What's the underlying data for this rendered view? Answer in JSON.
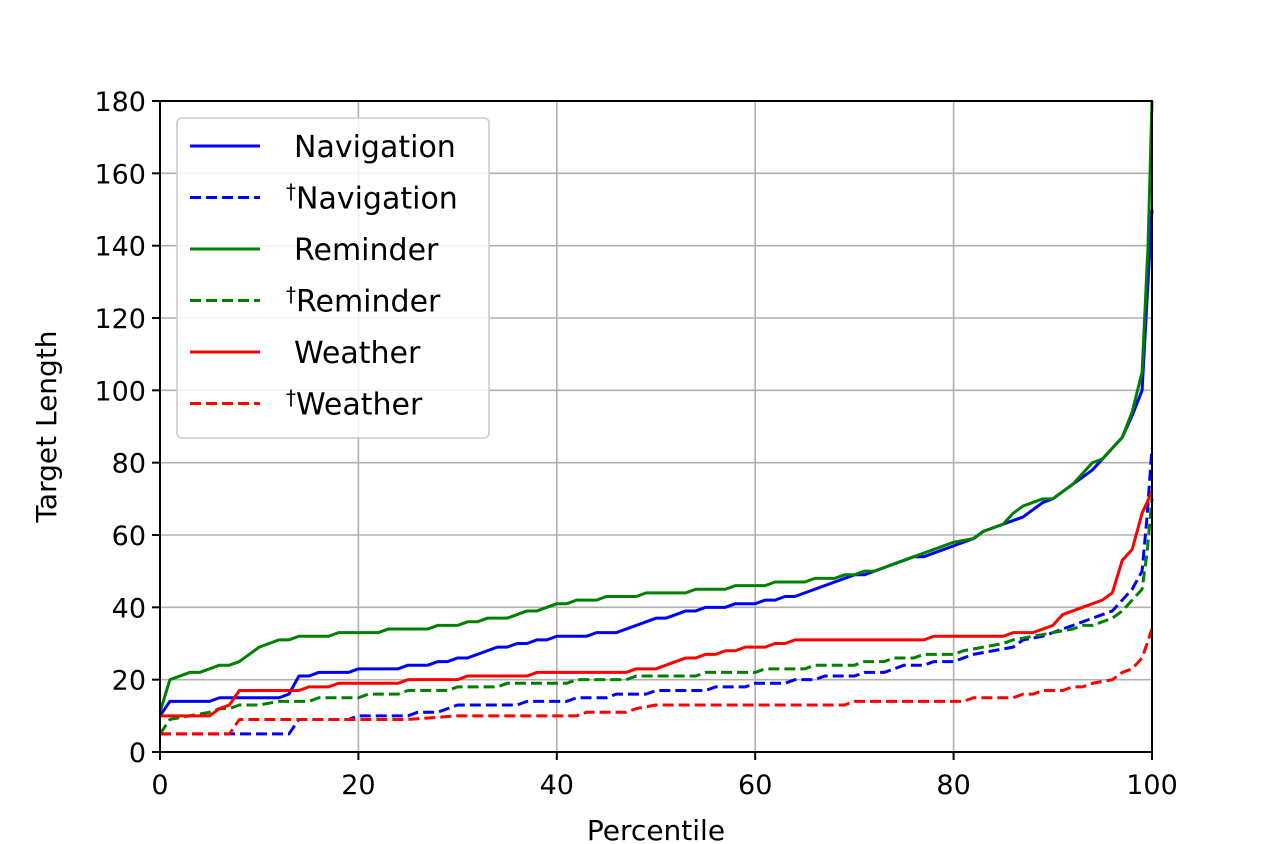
{
  "chart_data": {
    "type": "line",
    "title": "",
    "xlabel": "Percentile",
    "ylabel": "Target Length",
    "xlim": [
      0,
      100
    ],
    "ylim": [
      0,
      180
    ],
    "x_ticks": [
      0,
      20,
      40,
      60,
      80,
      100
    ],
    "y_ticks": [
      0,
      20,
      40,
      60,
      80,
      100,
      120,
      140,
      160,
      180
    ],
    "grid": true,
    "legend_position": "top-left",
    "series": [
      {
        "name": "Navigation",
        "dagger": false,
        "color": "#0000ff",
        "dash": "solid",
        "points": [
          [
            0,
            10
          ],
          [
            1,
            14
          ],
          [
            5,
            14
          ],
          [
            6,
            15
          ],
          [
            12,
            15
          ],
          [
            13,
            16
          ],
          [
            14,
            21
          ],
          [
            15,
            21
          ],
          [
            16,
            22
          ],
          [
            19,
            22
          ],
          [
            20,
            23
          ],
          [
            24,
            23
          ],
          [
            25,
            24
          ],
          [
            27,
            24
          ],
          [
            28,
            25
          ],
          [
            29,
            25
          ],
          [
            30,
            26
          ],
          [
            31,
            26
          ],
          [
            33,
            28
          ],
          [
            34,
            29
          ],
          [
            35,
            29
          ],
          [
            36,
            30
          ],
          [
            37,
            30
          ],
          [
            38,
            31
          ],
          [
            39,
            31
          ],
          [
            40,
            32
          ],
          [
            43,
            32
          ],
          [
            44,
            33
          ],
          [
            46,
            33
          ],
          [
            48,
            35
          ],
          [
            50,
            37
          ],
          [
            51,
            37
          ],
          [
            53,
            39
          ],
          [
            54,
            39
          ],
          [
            55,
            40
          ],
          [
            57,
            40
          ],
          [
            58,
            41
          ],
          [
            60,
            41
          ],
          [
            61,
            42
          ],
          [
            62,
            42
          ],
          [
            63,
            43
          ],
          [
            64,
            43
          ],
          [
            70,
            49
          ],
          [
            71,
            49
          ],
          [
            76,
            54
          ],
          [
            77,
            54
          ],
          [
            81,
            58
          ],
          [
            82,
            59
          ],
          [
            83,
            61
          ],
          [
            87,
            65
          ],
          [
            89,
            69
          ],
          [
            90,
            70
          ],
          [
            92,
            74
          ],
          [
            94,
            78
          ],
          [
            96,
            84
          ],
          [
            97,
            87
          ],
          [
            98,
            93
          ],
          [
            99,
            100
          ],
          [
            99.6,
            130
          ],
          [
            100,
            150
          ]
        ]
      },
      {
        "name": "Navigation",
        "dagger": true,
        "color": "#0000ff",
        "dash": "dashed",
        "points": [
          [
            0,
            5
          ],
          [
            7,
            5
          ],
          [
            13,
            5
          ],
          [
            14,
            9
          ],
          [
            19,
            9
          ],
          [
            20,
            10
          ],
          [
            25,
            10
          ],
          [
            26,
            11
          ],
          [
            28,
            11
          ],
          [
            29,
            12
          ],
          [
            30,
            13
          ],
          [
            36,
            13
          ],
          [
            37,
            14
          ],
          [
            41,
            14
          ],
          [
            42,
            15
          ],
          [
            45,
            15
          ],
          [
            46,
            16
          ],
          [
            49,
            16
          ],
          [
            50,
            17
          ],
          [
            55,
            17
          ],
          [
            56,
            18
          ],
          [
            59,
            18
          ],
          [
            60,
            19
          ],
          [
            63,
            19
          ],
          [
            64,
            20
          ],
          [
            66,
            20
          ],
          [
            67,
            21
          ],
          [
            70,
            21
          ],
          [
            71,
            22
          ],
          [
            73,
            22
          ],
          [
            74,
            23
          ],
          [
            75,
            24
          ],
          [
            77,
            24
          ],
          [
            78,
            25
          ],
          [
            80,
            25
          ],
          [
            81,
            26
          ],
          [
            82,
            27
          ],
          [
            84,
            28
          ],
          [
            86,
            29
          ],
          [
            87,
            31
          ],
          [
            89,
            32
          ],
          [
            91,
            34
          ],
          [
            93,
            36
          ],
          [
            95,
            38
          ],
          [
            96,
            39
          ],
          [
            97,
            42
          ],
          [
            98,
            45
          ],
          [
            99,
            50
          ],
          [
            99.5,
            65
          ],
          [
            100,
            84
          ]
        ]
      },
      {
        "name": "Reminder",
        "dagger": false,
        "color": "#008000",
        "dash": "solid",
        "points": [
          [
            0,
            11
          ],
          [
            1,
            20
          ],
          [
            3,
            22
          ],
          [
            4,
            22
          ],
          [
            6,
            24
          ],
          [
            7,
            24
          ],
          [
            8,
            25
          ],
          [
            10,
            29
          ],
          [
            12,
            31
          ],
          [
            13,
            31
          ],
          [
            14,
            32
          ],
          [
            17,
            32
          ],
          [
            18,
            33
          ],
          [
            22,
            33
          ],
          [
            23,
            34
          ],
          [
            27,
            34
          ],
          [
            28,
            35
          ],
          [
            30,
            35
          ],
          [
            31,
            36
          ],
          [
            32,
            36
          ],
          [
            33,
            37
          ],
          [
            35,
            37
          ],
          [
            37,
            39
          ],
          [
            38,
            39
          ],
          [
            39,
            40
          ],
          [
            40,
            41
          ],
          [
            41,
            41
          ],
          [
            42,
            42
          ],
          [
            44,
            42
          ],
          [
            45,
            43
          ],
          [
            48,
            43
          ],
          [
            49,
            44
          ],
          [
            53,
            44
          ],
          [
            54,
            45
          ],
          [
            57,
            45
          ],
          [
            58,
            46
          ],
          [
            61,
            46
          ],
          [
            62,
            47
          ],
          [
            65,
            47
          ],
          [
            66,
            48
          ],
          [
            68,
            48
          ],
          [
            69,
            49
          ],
          [
            70,
            49
          ],
          [
            71,
            50
          ],
          [
            72,
            50
          ],
          [
            75,
            53
          ],
          [
            77,
            55
          ],
          [
            80,
            58
          ],
          [
            82,
            59
          ],
          [
            83,
            61
          ],
          [
            85,
            63
          ],
          [
            86,
            66
          ],
          [
            87,
            68
          ],
          [
            89,
            70
          ],
          [
            90,
            70
          ],
          [
            91,
            72
          ],
          [
            92,
            74
          ],
          [
            94,
            80
          ],
          [
            95,
            81
          ],
          [
            97,
            87
          ],
          [
            98,
            94
          ],
          [
            99,
            105
          ],
          [
            99.6,
            140
          ],
          [
            100,
            180
          ]
        ]
      },
      {
        "name": "Reminder",
        "dagger": true,
        "color": "#008000",
        "dash": "dashed",
        "points": [
          [
            0,
            5
          ],
          [
            1,
            9
          ],
          [
            3,
            10
          ],
          [
            5,
            11
          ],
          [
            6,
            12
          ],
          [
            7,
            12
          ],
          [
            8,
            13
          ],
          [
            10,
            13
          ],
          [
            12,
            14
          ],
          [
            14,
            14
          ],
          [
            15,
            14
          ],
          [
            16,
            15
          ],
          [
            17,
            15
          ],
          [
            20,
            15
          ],
          [
            21,
            16
          ],
          [
            23,
            16
          ],
          [
            24,
            16
          ],
          [
            25,
            17
          ],
          [
            28,
            17
          ],
          [
            29,
            17
          ],
          [
            30,
            18
          ],
          [
            34,
            18
          ],
          [
            35,
            19
          ],
          [
            41,
            19
          ],
          [
            42,
            20
          ],
          [
            47,
            20
          ],
          [
            48,
            21
          ],
          [
            54,
            21
          ],
          [
            55,
            22
          ],
          [
            60,
            22
          ],
          [
            61,
            23
          ],
          [
            65,
            23
          ],
          [
            66,
            24
          ],
          [
            70,
            24
          ],
          [
            71,
            25
          ],
          [
            73,
            25
          ],
          [
            74,
            26
          ],
          [
            76,
            26
          ],
          [
            77,
            27
          ],
          [
            80,
            27
          ],
          [
            81,
            28
          ],
          [
            83,
            29
          ],
          [
            85,
            30
          ],
          [
            86,
            31
          ],
          [
            88,
            32
          ],
          [
            90,
            33
          ],
          [
            92,
            34
          ],
          [
            93,
            35
          ],
          [
            94,
            35
          ],
          [
            96,
            37
          ],
          [
            97,
            39
          ],
          [
            98,
            42
          ],
          [
            99,
            45
          ],
          [
            99.5,
            55
          ],
          [
            100,
            70
          ]
        ]
      },
      {
        "name": "Weather",
        "dagger": false,
        "color": "#ff0000",
        "dash": "solid",
        "points": [
          [
            0,
            10
          ],
          [
            1,
            10
          ],
          [
            5,
            10
          ],
          [
            6,
            12
          ],
          [
            7,
            13
          ],
          [
            8,
            17
          ],
          [
            13,
            17
          ],
          [
            14,
            17
          ],
          [
            15,
            18
          ],
          [
            16,
            18
          ],
          [
            17,
            18
          ],
          [
            18,
            19
          ],
          [
            23,
            19
          ],
          [
            24,
            19
          ],
          [
            25,
            20
          ],
          [
            30,
            20
          ],
          [
            31,
            21
          ],
          [
            35,
            21
          ],
          [
            36,
            21
          ],
          [
            37,
            21
          ],
          [
            38,
            22
          ],
          [
            45,
            22
          ],
          [
            46,
            22
          ],
          [
            47,
            22
          ],
          [
            48,
            23
          ],
          [
            50,
            23
          ],
          [
            51,
            24
          ],
          [
            52,
            25
          ],
          [
            53,
            26
          ],
          [
            54,
            26
          ],
          [
            55,
            27
          ],
          [
            56,
            27
          ],
          [
            57,
            28
          ],
          [
            58,
            28
          ],
          [
            59,
            29
          ],
          [
            61,
            29
          ],
          [
            62,
            30
          ],
          [
            63,
            30
          ],
          [
            64,
            31
          ],
          [
            77,
            31
          ],
          [
            78,
            32
          ],
          [
            85,
            32
          ],
          [
            86,
            33
          ],
          [
            88,
            33
          ],
          [
            90,
            35
          ],
          [
            91,
            38
          ],
          [
            93,
            40
          ],
          [
            95,
            42
          ],
          [
            96,
            44
          ],
          [
            97,
            53
          ],
          [
            98,
            56
          ],
          [
            99,
            66
          ],
          [
            100,
            72
          ]
        ]
      },
      {
        "name": "Weather",
        "dagger": true,
        "color": "#ff0000",
        "dash": "dashed",
        "points": [
          [
            0,
            5
          ],
          [
            6,
            5
          ],
          [
            7,
            5
          ],
          [
            8,
            9
          ],
          [
            15,
            9
          ],
          [
            18,
            9
          ],
          [
            20,
            9
          ],
          [
            25,
            9
          ],
          [
            30,
            10
          ],
          [
            42,
            10
          ],
          [
            43,
            11
          ],
          [
            47,
            11
          ],
          [
            48,
            12
          ],
          [
            50,
            13
          ],
          [
            60,
            13
          ],
          [
            69,
            13
          ],
          [
            70,
            14
          ],
          [
            80,
            14
          ],
          [
            81,
            14
          ],
          [
            82,
            15
          ],
          [
            86,
            15
          ],
          [
            87,
            16
          ],
          [
            88,
            16
          ],
          [
            89,
            17
          ],
          [
            91,
            17
          ],
          [
            92,
            18
          ],
          [
            93,
            18
          ],
          [
            94,
            19
          ],
          [
            96,
            20
          ],
          [
            97,
            22
          ],
          [
            98,
            23
          ],
          [
            99,
            26
          ],
          [
            100,
            34
          ]
        ]
      }
    ]
  }
}
